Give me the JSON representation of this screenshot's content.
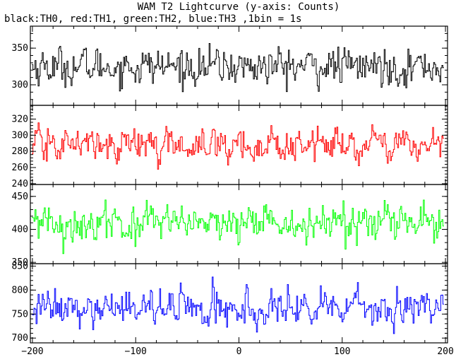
{
  "title": "WAM T2 Lightcurve (y-axis: Counts)",
  "subtitle": "black:TH0, red:TH1, green:TH2, blue:TH3 ,1bin = 1s",
  "chart_data": [
    {
      "type": "line",
      "series": [
        {
          "color": "#000000",
          "mean": 325,
          "noise_sd": 19,
          "min": 275,
          "max": 378,
          "n_points": 400
        }
      ],
      "xlim": [
        -202,
        202
      ],
      "ylim": [
        272,
        380
      ],
      "yticks": [
        300,
        350
      ],
      "xticks": [
        -200,
        -100,
        0,
        100,
        200
      ],
      "xlabel": "",
      "ylabel": ""
    },
    {
      "type": "line",
      "series": [
        {
          "color": "#ff0000",
          "mean": 288,
          "noise_sd": 15,
          "min": 241,
          "max": 335,
          "n_points": 400
        }
      ],
      "xlim": [
        -202,
        202
      ],
      "ylim": [
        239,
        337
      ],
      "yticks": [
        240,
        260,
        280,
        300,
        320
      ],
      "xticks": [
        -200,
        -100,
        0,
        100,
        200
      ],
      "xlabel": "",
      "ylabel": ""
    },
    {
      "type": "line",
      "series": [
        {
          "color": "#00ff00",
          "mean": 408,
          "noise_sd": 20,
          "min": 355,
          "max": 466,
          "n_points": 400
        }
      ],
      "xlim": [
        -202,
        202
      ],
      "ylim": [
        348,
        468
      ],
      "yticks": [
        350,
        400,
        450
      ],
      "xticks": [
        -200,
        -100,
        0,
        100,
        200
      ],
      "xlabel": "",
      "ylabel": ""
    },
    {
      "type": "line",
      "series": [
        {
          "color": "#0000ff",
          "mean": 760,
          "noise_sd": 28,
          "min": 696,
          "max": 850,
          "n_points": 400
        }
      ],
      "xlim": [
        -202,
        202
      ],
      "ylim": [
        690,
        855
      ],
      "yticks": [
        700,
        750,
        800,
        850
      ],
      "xticks": [
        -200,
        -100,
        0,
        100,
        200
      ],
      "xlabel": "",
      "ylabel": ""
    }
  ]
}
